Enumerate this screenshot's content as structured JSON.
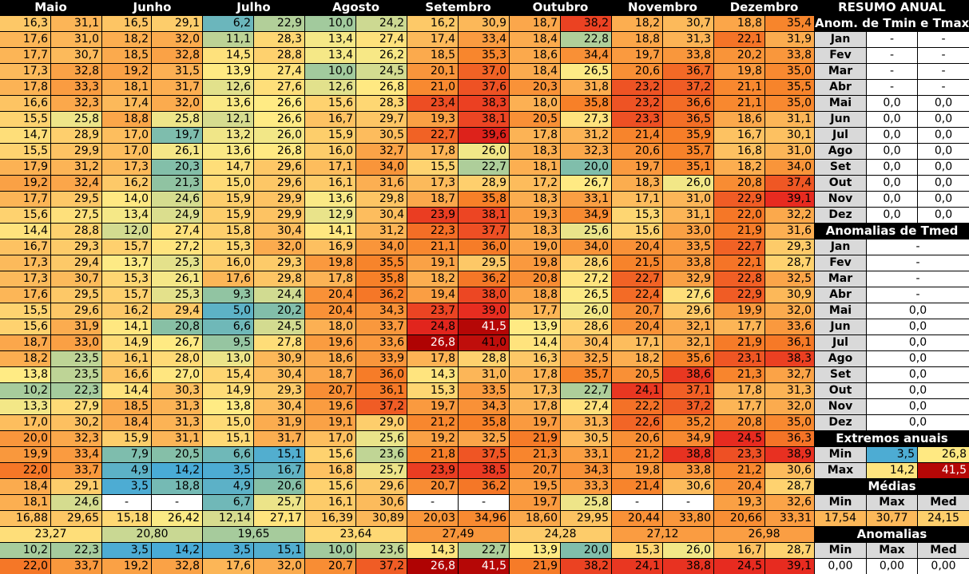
{
  "months": [
    "Maio",
    "Junho",
    "Julho",
    "Agosto",
    "Setembro",
    "Outubro",
    "Novembro",
    "Dezembro"
  ],
  "daily": [
    [
      [
        "16,3",
        "31,1"
      ],
      [
        "16,5",
        "29,1"
      ],
      [
        "6,2",
        "22,9"
      ],
      [
        "10,0",
        "24,2"
      ],
      [
        "16,2",
        "30,9"
      ],
      [
        "18,7",
        "38,2"
      ],
      [
        "18,2",
        "30,7"
      ],
      [
        "18,8",
        "35,4"
      ]
    ],
    [
      [
        "17,6",
        "31,0"
      ],
      [
        "18,2",
        "32,0"
      ],
      [
        "11,1",
        "28,3"
      ],
      [
        "13,4",
        "27,4"
      ],
      [
        "17,4",
        "33,4"
      ],
      [
        "18,4",
        "22,8"
      ],
      [
        "18,8",
        "31,3"
      ],
      [
        "22,1",
        "31,9"
      ]
    ],
    [
      [
        "17,7",
        "30,7"
      ],
      [
        "18,5",
        "32,8"
      ],
      [
        "14,5",
        "28,8"
      ],
      [
        "13,4",
        "26,2"
      ],
      [
        "18,5",
        "35,3"
      ],
      [
        "18,6",
        "34,4"
      ],
      [
        "19,7",
        "33,8"
      ],
      [
        "20,2",
        "33,8"
      ]
    ],
    [
      [
        "17,3",
        "32,8"
      ],
      [
        "19,2",
        "31,5"
      ],
      [
        "13,9",
        "27,4"
      ],
      [
        "10,0",
        "24,5"
      ],
      [
        "20,1",
        "37,0"
      ],
      [
        "18,4",
        "26,5"
      ],
      [
        "20,6",
        "36,7"
      ],
      [
        "19,8",
        "35,0"
      ]
    ],
    [
      [
        "17,8",
        "33,3"
      ],
      [
        "18,1",
        "31,7"
      ],
      [
        "12,6",
        "27,6"
      ],
      [
        "12,6",
        "26,8"
      ],
      [
        "21,0",
        "37,6"
      ],
      [
        "20,3",
        "31,8"
      ],
      [
        "23,2",
        "37,2"
      ],
      [
        "21,1",
        "35,5"
      ]
    ],
    [
      [
        "16,6",
        "32,3"
      ],
      [
        "17,4",
        "32,0"
      ],
      [
        "13,6",
        "26,6"
      ],
      [
        "15,6",
        "28,3"
      ],
      [
        "23,4",
        "38,3"
      ],
      [
        "18,0",
        "35,8"
      ],
      [
        "23,2",
        "36,6"
      ],
      [
        "21,1",
        "35,0"
      ]
    ],
    [
      [
        "15,5",
        "25,8"
      ],
      [
        "18,8",
        "25,8"
      ],
      [
        "12,1",
        "26,6"
      ],
      [
        "16,7",
        "29,7"
      ],
      [
        "19,3",
        "38,1"
      ],
      [
        "20,5",
        "27,3"
      ],
      [
        "23,3",
        "36,5"
      ],
      [
        "18,6",
        "31,1"
      ]
    ],
    [
      [
        "14,7",
        "28,9"
      ],
      [
        "17,0",
        "19,7"
      ],
      [
        "13,2",
        "26,0"
      ],
      [
        "15,9",
        "30,5"
      ],
      [
        "22,7",
        "39,6"
      ],
      [
        "17,8",
        "31,2"
      ],
      [
        "21,4",
        "35,9"
      ],
      [
        "16,7",
        "30,1"
      ]
    ],
    [
      [
        "15,5",
        "29,9"
      ],
      [
        "17,0",
        "26,1"
      ],
      [
        "13,6",
        "26,8"
      ],
      [
        "16,0",
        "32,7"
      ],
      [
        "17,8",
        "26,0"
      ],
      [
        "18,3",
        "32,3"
      ],
      [
        "20,6",
        "35,7"
      ],
      [
        "16,8",
        "31,0"
      ]
    ],
    [
      [
        "17,9",
        "31,2"
      ],
      [
        "17,3",
        "20,3"
      ],
      [
        "14,7",
        "29,6"
      ],
      [
        "17,1",
        "34,0"
      ],
      [
        "15,5",
        "22,7"
      ],
      [
        "18,1",
        "20,0"
      ],
      [
        "19,7",
        "35,1"
      ],
      [
        "18,2",
        "34,0"
      ]
    ],
    [
      [
        "19,2",
        "32,4"
      ],
      [
        "16,2",
        "21,3"
      ],
      [
        "15,0",
        "29,6"
      ],
      [
        "16,1",
        "31,6"
      ],
      [
        "17,3",
        "28,9"
      ],
      [
        "17,2",
        "26,7"
      ],
      [
        "18,3",
        "26,0"
      ],
      [
        "20,8",
        "37,4"
      ]
    ],
    [
      [
        "17,7",
        "29,5"
      ],
      [
        "14,0",
        "24,6"
      ],
      [
        "15,9",
        "29,9"
      ],
      [
        "13,6",
        "29,8"
      ],
      [
        "18,7",
        "35,8"
      ],
      [
        "18,3",
        "33,1"
      ],
      [
        "17,1",
        "31,0"
      ],
      [
        "22,9",
        "39,1"
      ]
    ],
    [
      [
        "15,6",
        "27,5"
      ],
      [
        "13,4",
        "24,9"
      ],
      [
        "15,9",
        "29,9"
      ],
      [
        "12,9",
        "30,4"
      ],
      [
        "23,9",
        "38,1"
      ],
      [
        "19,3",
        "34,9"
      ],
      [
        "15,3",
        "31,1"
      ],
      [
        "22,0",
        "32,2"
      ]
    ],
    [
      [
        "14,4",
        "28,8"
      ],
      [
        "12,0",
        "27,4"
      ],
      [
        "15,8",
        "30,4"
      ],
      [
        "14,1",
        "31,2"
      ],
      [
        "22,3",
        "37,7"
      ],
      [
        "18,3",
        "25,6"
      ],
      [
        "15,6",
        "33,0"
      ],
      [
        "21,9",
        "31,6"
      ]
    ],
    [
      [
        "16,7",
        "29,3"
      ],
      [
        "15,7",
        "27,2"
      ],
      [
        "15,3",
        "32,0"
      ],
      [
        "16,9",
        "34,0"
      ],
      [
        "21,1",
        "36,0"
      ],
      [
        "19,0",
        "34,0"
      ],
      [
        "20,4",
        "33,5"
      ],
      [
        "22,7",
        "29,3"
      ]
    ],
    [
      [
        "17,3",
        "29,4"
      ],
      [
        "13,7",
        "25,3"
      ],
      [
        "16,0",
        "29,3"
      ],
      [
        "19,8",
        "35,5"
      ],
      [
        "19,1",
        "29,5"
      ],
      [
        "19,8",
        "28,6"
      ],
      [
        "21,5",
        "33,8"
      ],
      [
        "22,1",
        "28,7"
      ]
    ],
    [
      [
        "17,3",
        "30,7"
      ],
      [
        "15,3",
        "26,1"
      ],
      [
        "17,6",
        "29,8"
      ],
      [
        "17,8",
        "35,8"
      ],
      [
        "18,2",
        "36,2"
      ],
      [
        "20,8",
        "27,2"
      ],
      [
        "22,7",
        "32,9"
      ],
      [
        "22,8",
        "32,5"
      ]
    ],
    [
      [
        "17,6",
        "29,5"
      ],
      [
        "15,7",
        "25,3"
      ],
      [
        "9,3",
        "24,4"
      ],
      [
        "20,4",
        "36,2"
      ],
      [
        "19,4",
        "38,0"
      ],
      [
        "18,8",
        "26,5"
      ],
      [
        "22,4",
        "27,6"
      ],
      [
        "22,9",
        "30,9"
      ]
    ],
    [
      [
        "15,5",
        "29,6"
      ],
      [
        "16,2",
        "29,4"
      ],
      [
        "5,0",
        "20,2"
      ],
      [
        "20,4",
        "34,3"
      ],
      [
        "23,7",
        "39,0"
      ],
      [
        "17,7",
        "26,0"
      ],
      [
        "20,7",
        "29,6"
      ],
      [
        "19,9",
        "32,0"
      ]
    ],
    [
      [
        "15,6",
        "31,9"
      ],
      [
        "14,1",
        "20,8"
      ],
      [
        "6,6",
        "24,5"
      ],
      [
        "18,0",
        "33,7"
      ],
      [
        "24,8",
        "41,5"
      ],
      [
        "13,9",
        "28,6"
      ],
      [
        "20,4",
        "32,1"
      ],
      [
        "17,7",
        "33,6"
      ]
    ],
    [
      [
        "18,7",
        "33,0"
      ],
      [
        "14,9",
        "26,7"
      ],
      [
        "9,5",
        "27,8"
      ],
      [
        "19,6",
        "33,6"
      ],
      [
        "26,8",
        "41,0"
      ],
      [
        "14,4",
        "30,4"
      ],
      [
        "17,1",
        "32,1"
      ],
      [
        "21,9",
        "36,1"
      ]
    ],
    [
      [
        "18,2",
        "23,5"
      ],
      [
        "16,1",
        "28,0"
      ],
      [
        "13,0",
        "30,9"
      ],
      [
        "18,6",
        "33,9"
      ],
      [
        "17,8",
        "28,8"
      ],
      [
        "16,3",
        "32,5"
      ],
      [
        "18,2",
        "35,6"
      ],
      [
        "23,1",
        "38,3"
      ]
    ],
    [
      [
        "13,8",
        "23,5"
      ],
      [
        "16,6",
        "27,0"
      ],
      [
        "15,4",
        "30,4"
      ],
      [
        "18,7",
        "36,0"
      ],
      [
        "14,3",
        "31,0"
      ],
      [
        "17,8",
        "35,7"
      ],
      [
        "20,5",
        "38,6"
      ],
      [
        "21,3",
        "32,7"
      ]
    ],
    [
      [
        "10,2",
        "22,3"
      ],
      [
        "14,4",
        "30,3"
      ],
      [
        "14,9",
        "29,3"
      ],
      [
        "20,7",
        "36,1"
      ],
      [
        "15,3",
        "33,5"
      ],
      [
        "17,3",
        "22,7"
      ],
      [
        "24,1",
        "37,1"
      ],
      [
        "17,8",
        "31,3"
      ]
    ],
    [
      [
        "13,3",
        "27,9"
      ],
      [
        "18,5",
        "31,3"
      ],
      [
        "13,8",
        "30,4"
      ],
      [
        "19,6",
        "37,2"
      ],
      [
        "19,7",
        "34,3"
      ],
      [
        "17,8",
        "27,4"
      ],
      [
        "22,2",
        "37,2"
      ],
      [
        "17,7",
        "32,0"
      ]
    ],
    [
      [
        "17,0",
        "30,2"
      ],
      [
        "18,4",
        "31,3"
      ],
      [
        "15,0",
        "31,9"
      ],
      [
        "19,1",
        "29,0"
      ],
      [
        "21,2",
        "35,8"
      ],
      [
        "19,7",
        "31,3"
      ],
      [
        "22,6",
        "35,2"
      ],
      [
        "20,8",
        "35,0"
      ]
    ],
    [
      [
        "20,0",
        "32,3"
      ],
      [
        "15,9",
        "31,1"
      ],
      [
        "15,1",
        "31,7"
      ],
      [
        "17,0",
        "25,6"
      ],
      [
        "19,2",
        "32,5"
      ],
      [
        "21,9",
        "30,5"
      ],
      [
        "20,6",
        "34,9"
      ],
      [
        "24,5",
        "36,3"
      ]
    ],
    [
      [
        "19,9",
        "33,4"
      ],
      [
        "7,9",
        "20,5"
      ],
      [
        "6,6",
        "15,1"
      ],
      [
        "15,6",
        "23,6"
      ],
      [
        "21,8",
        "37,5"
      ],
      [
        "21,3",
        "33,1"
      ],
      [
        "21,2",
        "38,8"
      ],
      [
        "23,3",
        "38,9"
      ]
    ],
    [
      [
        "22,0",
        "33,7"
      ],
      [
        "4,9",
        "14,2"
      ],
      [
        "3,5",
        "16,7"
      ],
      [
        "16,8",
        "25,7"
      ],
      [
        "23,9",
        "38,5"
      ],
      [
        "20,7",
        "34,3"
      ],
      [
        "19,8",
        "33,8"
      ],
      [
        "21,2",
        "30,6"
      ]
    ],
    [
      [
        "18,4",
        "29,1"
      ],
      [
        "3,5",
        "18,8"
      ],
      [
        "4,9",
        "20,6"
      ],
      [
        "15,6",
        "29,6"
      ],
      [
        "20,7",
        "36,2"
      ],
      [
        "19,5",
        "33,3"
      ],
      [
        "21,4",
        "30,6"
      ],
      [
        "20,4",
        "28,7"
      ]
    ],
    [
      [
        "18,1",
        "24,6"
      ],
      [
        "-",
        "-"
      ],
      [
        "6,7",
        "25,7"
      ],
      [
        "16,1",
        "30,6"
      ],
      [
        "-",
        "-"
      ],
      [
        "19,7",
        "25,8"
      ],
      [
        "-",
        "-"
      ],
      [
        "19,3",
        "32,6"
      ]
    ]
  ],
  "avg_row": [
    [
      "16,88",
      "29,65"
    ],
    [
      "15,18",
      "26,42"
    ],
    [
      "12,14",
      "27,17"
    ],
    [
      "16,39",
      "30,89"
    ],
    [
      "20,03",
      "34,96"
    ],
    [
      "18,60",
      "29,95"
    ],
    [
      "20,44",
      "33,80"
    ],
    [
      "20,66",
      "33,31"
    ]
  ],
  "mean_row": [
    "23,27",
    "20,80",
    "19,65",
    "23,64",
    "27,49",
    "24,28",
    "27,12",
    "26,98"
  ],
  "min_row": [
    [
      "10,2",
      "22,3"
    ],
    [
      "3,5",
      "14,2"
    ],
    [
      "3,5",
      "15,1"
    ],
    [
      "10,0",
      "23,6"
    ],
    [
      "14,3",
      "22,7"
    ],
    [
      "13,9",
      "20,0"
    ],
    [
      "15,3",
      "26,0"
    ],
    [
      "16,7",
      "28,7"
    ]
  ],
  "max_row": [
    [
      "22,0",
      "33,7"
    ],
    [
      "19,2",
      "32,8"
    ],
    [
      "17,6",
      "32,0"
    ],
    [
      "20,7",
      "37,2"
    ],
    [
      "26,8",
      "41,5"
    ],
    [
      "21,9",
      "38,2"
    ],
    [
      "24,1",
      "38,8"
    ],
    [
      "24,5",
      "39,1"
    ]
  ],
  "resumo": {
    "title": "RESUMO ANUAL",
    "anom_title": "Anom. de Tmin e Tmax",
    "anom_rows": [
      [
        "Jan",
        "-",
        "-"
      ],
      [
        "Fev",
        "-",
        "-"
      ],
      [
        "Mar",
        "-",
        "-"
      ],
      [
        "Abr",
        "-",
        "-"
      ],
      [
        "Mai",
        "0,0",
        "0,0"
      ],
      [
        "Jun",
        "0,0",
        "0,0"
      ],
      [
        "Jul",
        "0,0",
        "0,0"
      ],
      [
        "Ago",
        "0,0",
        "0,0"
      ],
      [
        "Set",
        "0,0",
        "0,0"
      ],
      [
        "Out",
        "0,0",
        "0,0"
      ],
      [
        "Nov",
        "0,0",
        "0,0"
      ],
      [
        "Dez",
        "0,0",
        "0,0"
      ]
    ],
    "tmed_title": "Anomalias de Tmed",
    "tmed_rows": [
      [
        "Jan",
        "-"
      ],
      [
        "Fev",
        "-"
      ],
      [
        "Mar",
        "-"
      ],
      [
        "Abr",
        "-"
      ],
      [
        "Mai",
        "0,0"
      ],
      [
        "Jun",
        "0,0"
      ],
      [
        "Jul",
        "0,0"
      ],
      [
        "Ago",
        "0,0"
      ],
      [
        "Set",
        "0,0"
      ],
      [
        "Out",
        "0,0"
      ],
      [
        "Nov",
        "0,0"
      ],
      [
        "Dez",
        "0,0"
      ]
    ],
    "extremos_title": "Extremos anuais",
    "ext_min": [
      "Min",
      "3,5",
      "26,8"
    ],
    "ext_max": [
      "Max",
      "14,2",
      "41,5"
    ],
    "medias_title": "Médias",
    "medias_head": [
      "Min",
      "Max",
      "Med"
    ],
    "medias_vals": [
      "17,54",
      "30,77",
      "24,15"
    ],
    "anomalias_title": "Anomalias",
    "anomalias_head": [
      "Min",
      "Max",
      "Med"
    ],
    "anomalias_vals": [
      "0,00",
      "0,00",
      "0,00"
    ]
  },
  "colors": {
    "blank": "#ffffff",
    "label_gray": "#d9d9d9",
    "header_black": "#000000"
  }
}
